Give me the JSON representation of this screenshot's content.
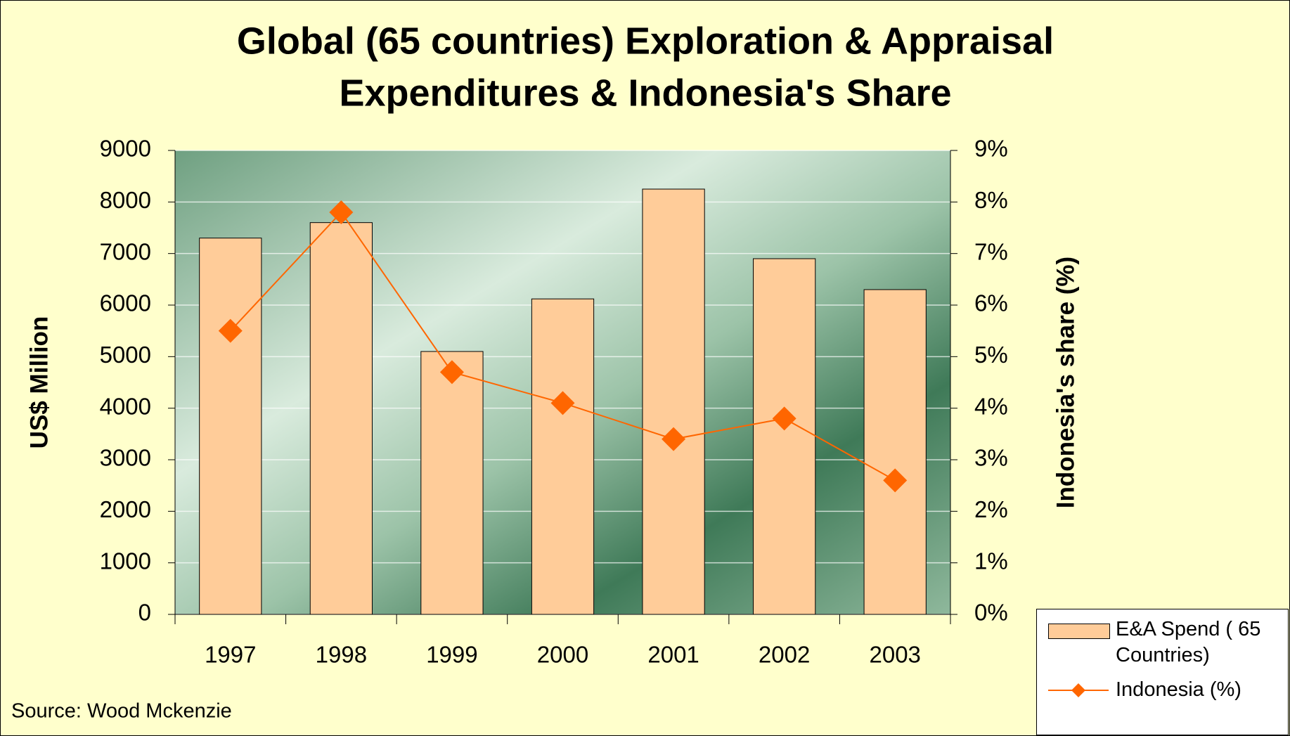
{
  "chart_data": {
    "type": "bar_line",
    "title": [
      "Global (65 countries) Exploration & Appraisal",
      "Expenditures & Indonesia's Share"
    ],
    "categories": [
      "1997",
      "1998",
      "1999",
      "2000",
      "2001",
      "2002",
      "2003"
    ],
    "series": [
      {
        "name": "E&A Spend ( 65 Countries)",
        "type": "bar",
        "color": "#ffcc99",
        "values": [
          7300,
          7600,
          5100,
          6120,
          8250,
          6900,
          6300
        ]
      },
      {
        "name": "Indonesia (%)",
        "type": "line",
        "axis": "y2",
        "color": "#ff6600",
        "values": [
          5.5,
          7.8,
          4.7,
          4.1,
          3.4,
          3.8,
          2.6
        ]
      }
    ],
    "ylabel": "US$ Million",
    "y2label": "Indonesia's share (%)",
    "ylim": [
      0,
      9000
    ],
    "yticks": [
      0,
      1000,
      2000,
      3000,
      4000,
      5000,
      6000,
      7000,
      8000,
      9000
    ],
    "y2lim": [
      0,
      9
    ],
    "y2ticks": [
      {
        "value": 0,
        "label": "0%"
      },
      {
        "value": 1,
        "label": "1%"
      },
      {
        "value": 2,
        "label": "2%"
      },
      {
        "value": 3,
        "label": "3%"
      },
      {
        "value": 4,
        "label": "4%"
      },
      {
        "value": 5,
        "label": "5%"
      },
      {
        "value": 6,
        "label": "6%"
      },
      {
        "value": 7,
        "label": "7%"
      },
      {
        "value": 8,
        "label": "8%"
      },
      {
        "value": 9,
        "label": "9%"
      }
    ],
    "grid": true,
    "legend": "bottom-right",
    "source": "Source: Wood Mckenzie"
  }
}
